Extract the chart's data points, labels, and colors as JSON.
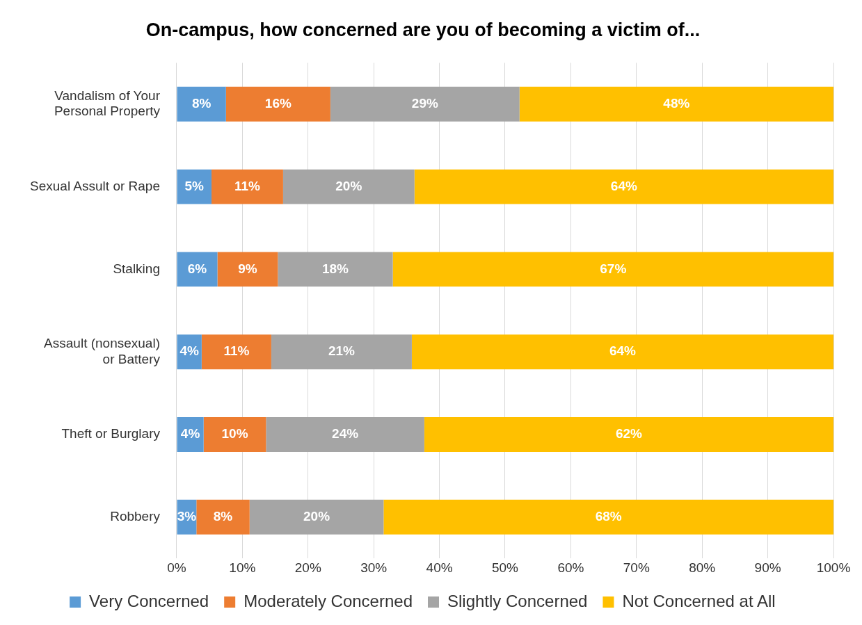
{
  "chart_data": {
    "type": "bar",
    "orientation": "horizontal",
    "stacked": true,
    "title": "On-campus, how concerned are you of becoming a victim of...",
    "categories": [
      "Vandalism of Your Personal Property",
      "Sexual Assult or Rape",
      "Stalking",
      "Assault (nonsexual) or Battery",
      "Theft or Burglary",
      "Robbery"
    ],
    "series": [
      {
        "name": "Very Concerned",
        "color": "#5b9bd5",
        "values": [
          7.5,
          5.3,
          6.2,
          3.8,
          4.1,
          3.0
        ],
        "value_labels": [
          "8%",
          "5%",
          "6%",
          "4%",
          "4%",
          "3%"
        ]
      },
      {
        "name": "Moderately Concerned",
        "color": "#ed7d31",
        "values": [
          15.9,
          10.9,
          9.2,
          10.6,
          9.5,
          8.1
        ],
        "value_labels": [
          "16%",
          "11%",
          "9%",
          "11%",
          "10%",
          "8%"
        ]
      },
      {
        "name": "Slightly Concerned",
        "color": "#a5a5a5",
        "values": [
          28.8,
          20.0,
          17.5,
          21.4,
          24.1,
          20.4
        ],
        "value_labels": [
          "29%",
          "20%",
          "18%",
          "21%",
          "24%",
          "20%"
        ]
      },
      {
        "name": "Not Concerned at All",
        "color": "#ffc000",
        "values": [
          47.8,
          63.8,
          67.1,
          64.2,
          62.3,
          68.5
        ],
        "value_labels": [
          "48%",
          "64%",
          "67%",
          "64%",
          "62%",
          "68%"
        ]
      }
    ],
    "xlim": [
      0,
      100
    ],
    "xticks": [
      {
        "value": 0,
        "label": "0%"
      },
      {
        "value": 10,
        "label": "10%"
      },
      {
        "value": 20,
        "label": "20%"
      },
      {
        "value": 30,
        "label": "30%"
      },
      {
        "value": 40,
        "label": "40%"
      },
      {
        "value": 50,
        "label": "50%"
      },
      {
        "value": 60,
        "label": "60%"
      },
      {
        "value": 70,
        "label": "70%"
      },
      {
        "value": 80,
        "label": "80%"
      },
      {
        "value": 90,
        "label": "90%"
      },
      {
        "value": 100,
        "label": "100%"
      }
    ],
    "grid": "x",
    "legend": "bottom"
  }
}
